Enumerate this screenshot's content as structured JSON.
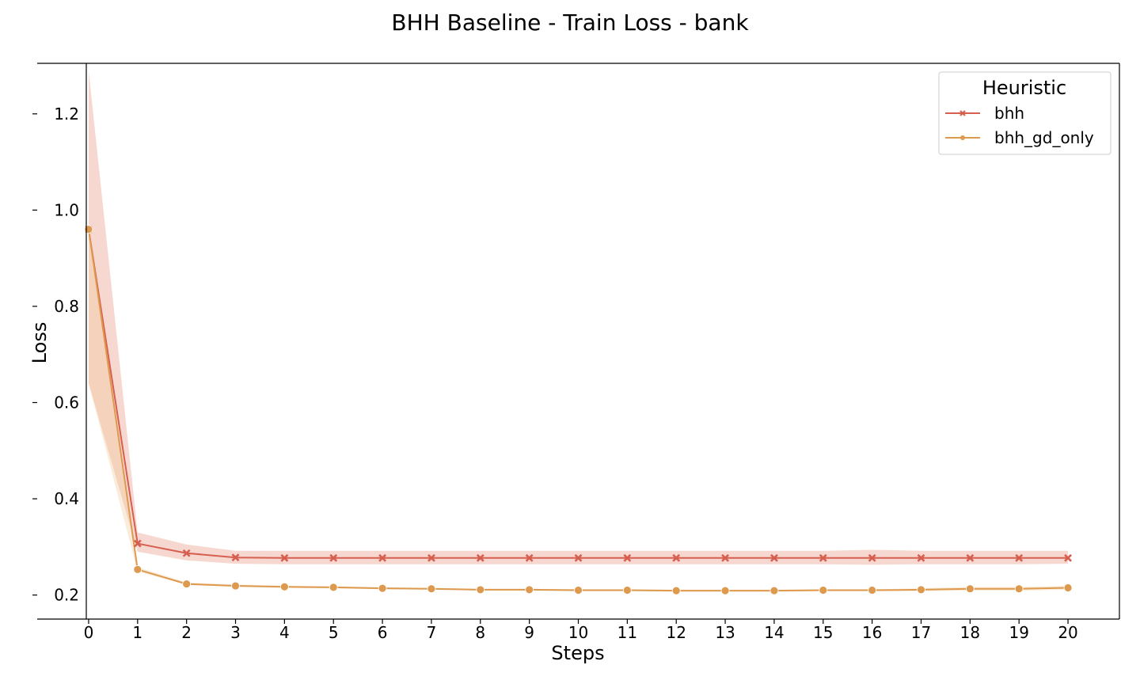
{
  "chart_data": {
    "type": "line",
    "title": "BHH Baseline - Train Loss - bank",
    "xlabel": "Steps",
    "ylabel": "Loss",
    "x": [
      0,
      1,
      2,
      3,
      4,
      5,
      6,
      7,
      8,
      9,
      10,
      11,
      12,
      13,
      14,
      15,
      16,
      17,
      18,
      19,
      20
    ],
    "x_tick_labels": [
      "0",
      "1",
      "2",
      "3",
      "4",
      "5",
      "6",
      "7",
      "8",
      "9",
      "10",
      "11",
      "12",
      "13",
      "14",
      "15",
      "16",
      "17",
      "18",
      "19",
      "20"
    ],
    "y_ticks": [
      0.2,
      0.4,
      0.6,
      0.8,
      1.0,
      1.2
    ],
    "y_tick_labels": [
      "0.2",
      "0.4",
      "0.6",
      "0.8",
      "1.0",
      "1.2"
    ],
    "xlim": [
      -1.05,
      21.05
    ],
    "ylim": [
      0.15,
      1.305
    ],
    "grid": false,
    "legend": {
      "title": "Heuristic",
      "placement": "top-right"
    },
    "series": [
      {
        "name": "bhh",
        "color": "#d65f4f",
        "band_color": "#e8907c",
        "marker": "x",
        "values": [
          0.96,
          0.307,
          0.287,
          0.278,
          0.277,
          0.277,
          0.277,
          0.277,
          0.277,
          0.277,
          0.277,
          0.277,
          0.277,
          0.277,
          0.277,
          0.277,
          0.277,
          0.277,
          0.277,
          0.277,
          0.277
        ],
        "band_low": [
          0.64,
          0.29,
          0.272,
          0.265,
          0.264,
          0.264,
          0.264,
          0.264,
          0.264,
          0.264,
          0.264,
          0.264,
          0.264,
          0.264,
          0.264,
          0.264,
          0.263,
          0.264,
          0.264,
          0.264,
          0.265
        ],
        "band_high": [
          1.29,
          0.33,
          0.305,
          0.292,
          0.292,
          0.292,
          0.292,
          0.292,
          0.292,
          0.292,
          0.292,
          0.292,
          0.292,
          0.292,
          0.292,
          0.292,
          0.294,
          0.292,
          0.292,
          0.292,
          0.292
        ]
      },
      {
        "name": "bhh_gd_only",
        "color": "#dd9a4e",
        "band_color": "#f0c896",
        "marker": "o",
        "values": [
          0.96,
          0.253,
          0.223,
          0.219,
          0.217,
          0.216,
          0.214,
          0.213,
          0.211,
          0.211,
          0.21,
          0.21,
          0.209,
          0.209,
          0.209,
          0.21,
          0.21,
          0.211,
          0.213,
          0.213,
          0.215
        ],
        "band_low": [
          0.64,
          0.249,
          0.221,
          0.217,
          0.215,
          0.214,
          0.212,
          0.211,
          0.209,
          0.209,
          0.208,
          0.208,
          0.207,
          0.207,
          0.207,
          0.208,
          0.208,
          0.208,
          0.209,
          0.209,
          0.211
        ],
        "band_high": [
          0.96,
          0.258,
          0.226,
          0.222,
          0.219,
          0.218,
          0.216,
          0.215,
          0.213,
          0.213,
          0.212,
          0.212,
          0.211,
          0.211,
          0.211,
          0.212,
          0.212,
          0.214,
          0.217,
          0.217,
          0.219
        ]
      }
    ]
  }
}
